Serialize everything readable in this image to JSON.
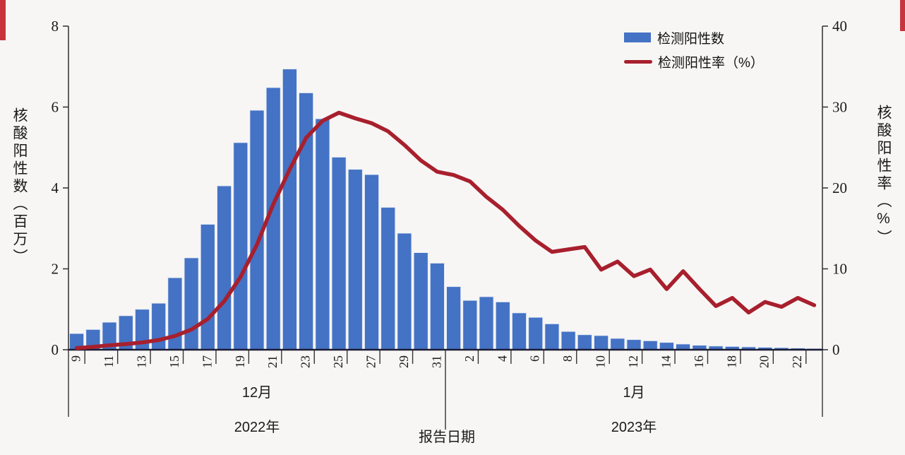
{
  "page": {
    "background": "#f7f6f4",
    "accent_strip_color": "#c8333b"
  },
  "legend": {
    "series1_label": "检测阳性数",
    "series2_label": "检测阳性率（%）"
  },
  "left_axis_title": "核酸阳性数（百万）",
  "right_axis_title": "核酸阳性率（%）",
  "x_axis_title": "报告日期",
  "chart_data": {
    "type": "combo-bar-line",
    "title": "",
    "categories": [
      "9",
      "10",
      "11",
      "12",
      "13",
      "14",
      "15",
      "16",
      "17",
      "18",
      "19",
      "20",
      "21",
      "22",
      "23",
      "24",
      "25",
      "26",
      "27",
      "28",
      "29",
      "30",
      "31",
      "1",
      "2",
      "3",
      "4",
      "5",
      "6",
      "7",
      "8",
      "9",
      "10",
      "11",
      "12",
      "13",
      "14",
      "15",
      "16",
      "17",
      "18",
      "19",
      "20",
      "21",
      "22",
      "23"
    ],
    "x_groups": [
      {
        "month": "12月",
        "year": "2022年",
        "count": 23
      },
      {
        "month": "1月",
        "year": "2023年",
        "count": 23
      }
    ],
    "x_tick_labels": [
      "9",
      "11",
      "13",
      "15",
      "17",
      "19",
      "21",
      "23",
      "25",
      "27",
      "29",
      "31",
      "2",
      "4",
      "6",
      "8",
      "10",
      "12",
      "14",
      "16",
      "18",
      "20",
      "22"
    ],
    "left_axis": {
      "label": "核酸阳性数（百万）",
      "ticks": [
        0,
        2,
        4,
        6,
        8
      ],
      "min": 0,
      "max": 8
    },
    "right_axis": {
      "label": "核酸阳性率（%）",
      "ticks": [
        0,
        10,
        20,
        30,
        40
      ],
      "min": 0,
      "max": 40
    },
    "grid": false,
    "legend_position": "top-right",
    "series": [
      {
        "name": "检测阳性数",
        "type": "bar",
        "axis": "left",
        "color": "#4472c4",
        "values": [
          0.4,
          0.5,
          0.68,
          0.84,
          1.0,
          1.15,
          1.78,
          2.27,
          3.1,
          4.05,
          5.12,
          5.92,
          6.48,
          6.94,
          6.35,
          5.71,
          4.76,
          4.46,
          4.33,
          3.52,
          2.88,
          2.4,
          2.14,
          1.56,
          1.22,
          1.31,
          1.18,
          0.91,
          0.8,
          0.64,
          0.45,
          0.37,
          0.35,
          0.28,
          0.25,
          0.22,
          0.18,
          0.14,
          0.11,
          0.09,
          0.08,
          0.07,
          0.06,
          0.05,
          0.04,
          0.03
        ]
      },
      {
        "name": "检测阳性率（%）",
        "type": "line",
        "axis": "right",
        "color": "#a81f2d",
        "values": [
          0.2,
          0.35,
          0.55,
          0.7,
          0.9,
          1.2,
          1.7,
          2.5,
          3.8,
          6.0,
          9.0,
          13.0,
          18.0,
          22.3,
          26.2,
          28.3,
          29.3,
          28.6,
          28.0,
          27.0,
          25.3,
          23.4,
          22.0,
          21.6,
          20.8,
          18.9,
          17.3,
          15.3,
          13.5,
          12.1,
          12.4,
          12.7,
          9.9,
          10.9,
          9.1,
          9.9,
          7.5,
          9.7,
          7.5,
          5.4,
          6.4,
          4.6,
          5.9,
          5.3,
          6.4,
          5.5
        ]
      }
    ]
  }
}
